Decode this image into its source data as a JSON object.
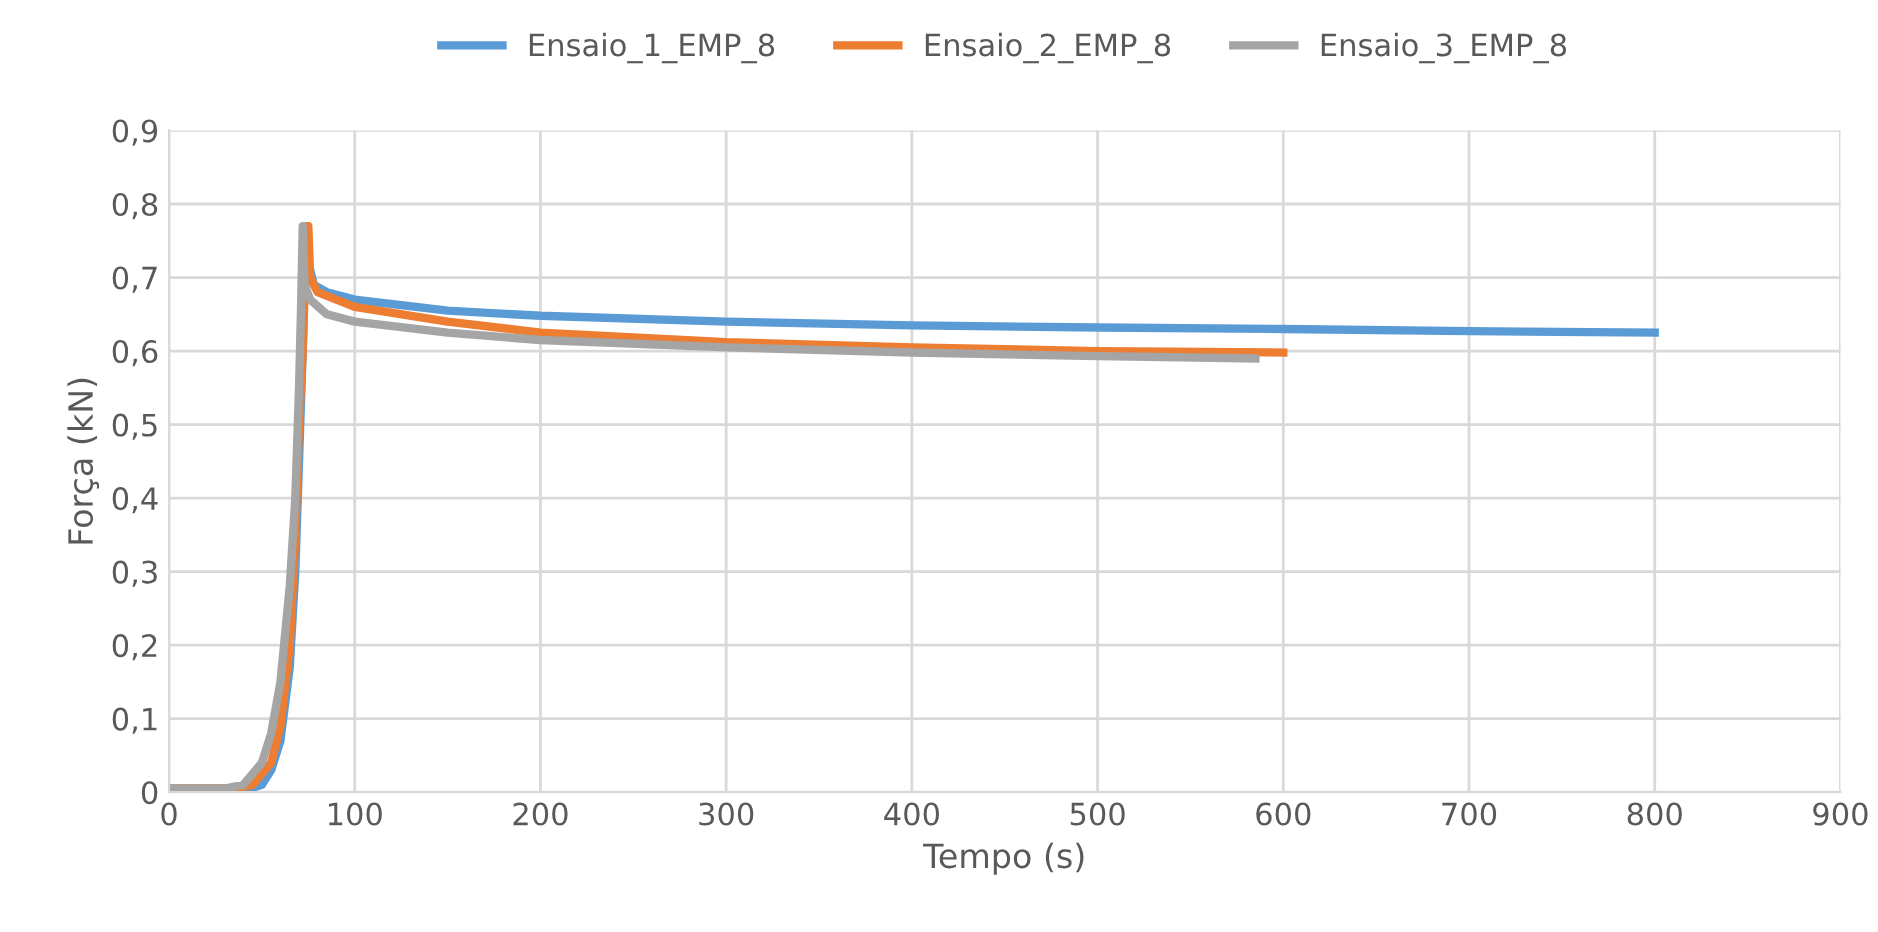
{
  "chart_data": {
    "type": "line",
    "xlabel": "Tempo (s)",
    "ylabel": "Força (kN)",
    "xlim": [
      0,
      900
    ],
    "xticks": [
      0,
      100,
      200,
      300,
      400,
      500,
      600,
      700,
      800,
      900
    ],
    "ylim": [
      0,
      0.9
    ],
    "yticks": [
      {
        "value": 0,
        "label": "0"
      },
      {
        "value": 0.1,
        "label": "0,1"
      },
      {
        "value": 0.2,
        "label": "0,2"
      },
      {
        "value": 0.3,
        "label": "0,3"
      },
      {
        "value": 0.4,
        "label": "0,4"
      },
      {
        "value": 0.5,
        "label": "0,5"
      },
      {
        "value": 0.6,
        "label": "0,6"
      },
      {
        "value": 0.7,
        "label": "0,7"
      },
      {
        "value": 0.8,
        "label": "0,8"
      },
      {
        "value": 0.9,
        "label": "0,9"
      }
    ],
    "grid": true,
    "legend": "top",
    "marker": "none",
    "line_style": "solid",
    "series": [
      {
        "name": "Ensaio_1_EMP_8",
        "color": "#5b9bd5",
        "x": [
          0,
          30,
          40,
          50,
          55,
          60,
          65,
          68,
          70,
          72,
          73,
          74,
          75,
          78,
          85,
          100,
          150,
          200,
          300,
          400,
          500,
          600,
          700,
          800
        ],
        "values": [
          0.005,
          0.005,
          0.002,
          0.01,
          0.03,
          0.07,
          0.17,
          0.3,
          0.45,
          0.6,
          0.7,
          0.77,
          0.72,
          0.69,
          0.68,
          0.67,
          0.655,
          0.648,
          0.64,
          0.635,
          0.632,
          0.63,
          0.627,
          0.625
        ]
      },
      {
        "name": "Ensaio_2_EMP_8",
        "color": "#ed7d31",
        "x": [
          0,
          35,
          45,
          55,
          60,
          65,
          68,
          70,
          72,
          73,
          75,
          76,
          80,
          100,
          150,
          200,
          300,
          400,
          500,
          600
        ],
        "values": [
          0.005,
          0.005,
          0.01,
          0.04,
          0.09,
          0.2,
          0.35,
          0.5,
          0.6,
          0.68,
          0.77,
          0.7,
          0.68,
          0.66,
          0.64,
          0.625,
          0.612,
          0.605,
          0.6,
          0.598
        ]
      },
      {
        "name": "Ensaio_3_EMP_8",
        "color": "#a5a5a5",
        "x": [
          0,
          30,
          40,
          50,
          55,
          60,
          65,
          68,
          70,
          71,
          72,
          73,
          76,
          85,
          100,
          150,
          200,
          300,
          400,
          500,
          585
        ],
        "values": [
          0.005,
          0.005,
          0.01,
          0.04,
          0.08,
          0.15,
          0.28,
          0.4,
          0.55,
          0.65,
          0.77,
          0.69,
          0.67,
          0.65,
          0.64,
          0.625,
          0.615,
          0.605,
          0.598,
          0.593,
          0.59
        ]
      }
    ]
  }
}
